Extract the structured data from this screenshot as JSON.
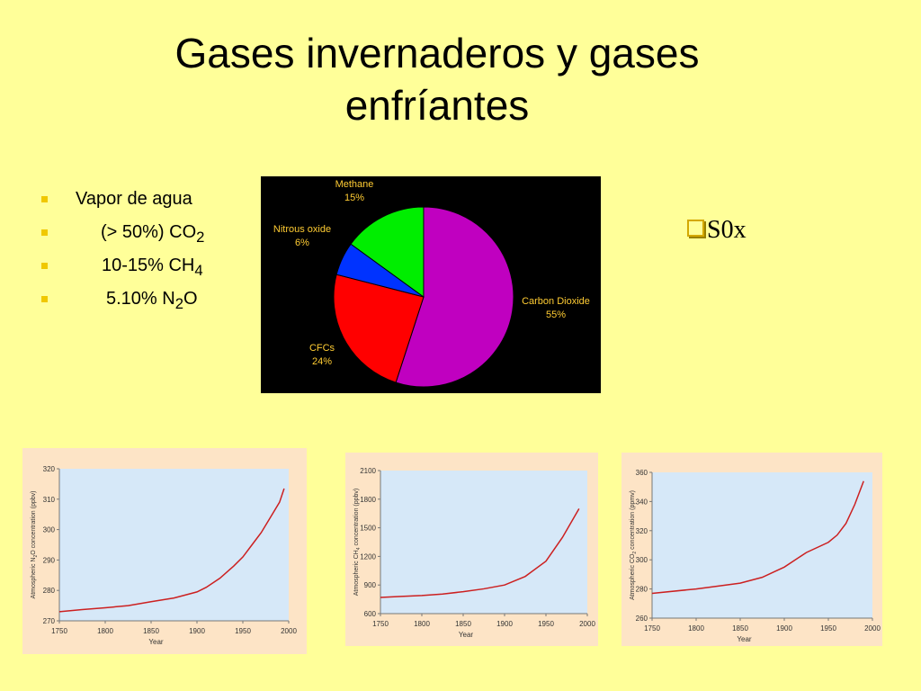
{
  "slide": {
    "title": [
      "Gases invernaderos y gases",
      "enfríantes"
    ],
    "bullets": [
      [
        {
          "t": "Vapor de agua"
        }
      ],
      [
        {
          "t": "(> 50%) CO"
        },
        {
          "sub": "2"
        }
      ],
      [
        {
          "t": "10-15% CH"
        },
        {
          "sub": "4"
        }
      ],
      [
        {
          "t": "5.10% N"
        },
        {
          "sub": "2"
        },
        {
          "t": "O"
        }
      ]
    ],
    "side_item": "S0x"
  },
  "chart_data": [
    {
      "type": "pie",
      "categories": [
        "Carbon Dioxide",
        "CFCs",
        "Nitrous oxide",
        "Methane"
      ],
      "values": [
        55,
        24,
        6,
        15
      ],
      "value_labels": [
        "55%",
        "24%",
        "6%",
        "15%"
      ],
      "colors": [
        "#c000c0",
        "#ff0000",
        "#0033ff",
        "#00ee00"
      ]
    },
    {
      "type": "line",
      "color": "#cc2020",
      "x": [
        1750,
        1775,
        1800,
        1825,
        1850,
        1875,
        1900,
        1910,
        1925,
        1940,
        1950,
        1960,
        1970,
        1980,
        1990,
        1995
      ],
      "values": [
        273,
        273.7,
        274.3,
        275,
        276.3,
        277.5,
        279.5,
        281,
        284,
        288,
        291,
        295,
        299,
        304,
        309,
        313.5
      ],
      "xlim": [
        1750,
        2000
      ],
      "xticks": [
        1750,
        1800,
        1850,
        1900,
        1950,
        2000
      ],
      "ylim": [
        270,
        320
      ],
      "yticks": [
        270,
        280,
        290,
        300,
        310,
        320
      ],
      "xlabel": "Year",
      "ylabel": [
        {
          "t": "Atmospheric N"
        },
        {
          "sub": "2"
        },
        {
          "t": "O concentration (ppbv)"
        }
      ]
    },
    {
      "type": "line",
      "color": "#cc2020",
      "x": [
        1750,
        1775,
        1800,
        1825,
        1850,
        1875,
        1900,
        1925,
        1950,
        1970,
        1990
      ],
      "values": [
        770,
        780,
        790,
        805,
        830,
        860,
        900,
        990,
        1150,
        1400,
        1700
      ],
      "xlim": [
        1750,
        2000
      ],
      "xticks": [
        1750,
        1800,
        1850,
        1900,
        1950,
        2000
      ],
      "ylim": [
        600,
        2100
      ],
      "yticks": [
        600,
        900,
        1200,
        1500,
        1800,
        2100
      ],
      "xlabel": "Year",
      "ylabel": [
        {
          "t": "Atmospheric CH"
        },
        {
          "sub": "4"
        },
        {
          "t": " concentration (ppbv)"
        }
      ]
    },
    {
      "type": "line",
      "color": "#cc2020",
      "x": [
        1750,
        1800,
        1850,
        1875,
        1900,
        1925,
        1950,
        1960,
        1970,
        1980,
        1990
      ],
      "values": [
        277,
        280,
        284,
        288,
        295,
        305,
        312,
        317,
        325,
        338,
        354
      ],
      "xlim": [
        1750,
        2000
      ],
      "xticks": [
        1750,
        1800,
        1850,
        1900,
        1950,
        2000
      ],
      "ylim": [
        260,
        360
      ],
      "yticks": [
        260,
        280,
        300,
        320,
        340,
        360
      ],
      "xlabel": "Year",
      "ylabel": [
        {
          "t": "Atmospheric CO"
        },
        {
          "sub": "2"
        },
        {
          "t": " concentration (ppmv)"
        }
      ]
    }
  ]
}
